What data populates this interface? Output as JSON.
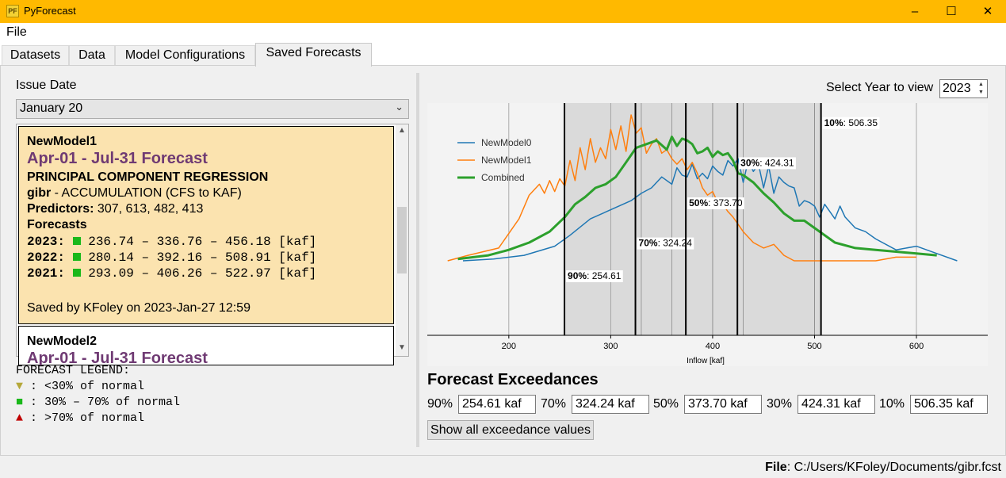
{
  "window": {
    "title": "PyForecast",
    "app_icon_text": "PF",
    "minimize": "–",
    "maximize": "☐",
    "close": "✕"
  },
  "menu": {
    "file": "File"
  },
  "tabs": [
    {
      "label": "Datasets",
      "active": false
    },
    {
      "label": "Data",
      "active": false
    },
    {
      "label": "Model Configurations",
      "active": false
    },
    {
      "label": "Saved Forecasts",
      "active": true
    }
  ],
  "issue_date": {
    "label": "Issue Date",
    "selected": "January 20"
  },
  "saved_forecasts": [
    {
      "model": "NewModel1",
      "period": "Apr-01 - Jul-31 Forecast",
      "method": "PRINCIPAL COMPONENT REGRESSION",
      "target_code": "gibr",
      "target_desc": " - ACCUMULATION (CFS to KAF)",
      "predictors_label": "Predictors:",
      "predictors": " 307, 613, 482, 413",
      "forecasts_label": "Forecasts",
      "forecasts": [
        {
          "year": "2023:",
          "range": " 236.74 – 336.76 – 456.18 [kaf]"
        },
        {
          "year": "2022:",
          "range": " 280.14 – 392.16 – 508.91 [kaf]"
        },
        {
          "year": "2021:",
          "range": " 293.09 – 406.26 – 522.97 [kaf]"
        }
      ],
      "saved_by": "Saved by KFoley on 2023-Jan-27 12:59"
    },
    {
      "model": "NewModel2",
      "period": "Apr-01 - Jul-31 Forecast"
    }
  ],
  "legend": {
    "title": "FORECAST LEGEND:",
    "items": [
      {
        "symbol": "▼",
        "color": "#b5a83a",
        "text": " : <30% of normal"
      },
      {
        "symbol": "■",
        "color": "#1ab81a",
        "text": " : 30% – 70% of normal"
      },
      {
        "symbol": "▲",
        "color": "#c00000",
        "text": " : >70% of normal"
      }
    ]
  },
  "year_select": {
    "label": "Select Year to view",
    "value": "2023"
  },
  "chart_data": {
    "type": "line",
    "xlabel": "Inflow [kaf]",
    "xlim": [
      120,
      670
    ],
    "ylim": [
      0,
      1
    ],
    "xticks": [
      200,
      300,
      400,
      500,
      600
    ],
    "grid": true,
    "legend_position": "top-left",
    "series": [
      {
        "name": "NewModel0",
        "color": "#1f77b4",
        "width": 1.5,
        "x": [
          155,
          185,
          215,
          245,
          260,
          280,
          300,
          320,
          330,
          340,
          350,
          360,
          365,
          370,
          375,
          380,
          385,
          390,
          395,
          400,
          405,
          410,
          415,
          420,
          425,
          430,
          435,
          440,
          445,
          450,
          455,
          460,
          465,
          470,
          475,
          480,
          485,
          490,
          495,
          500,
          505,
          510,
          515,
          520,
          525,
          530,
          540,
          550,
          560,
          580,
          600,
          620,
          640
        ],
        "y": [
          0.2,
          0.21,
          0.23,
          0.28,
          0.34,
          0.43,
          0.48,
          0.53,
          0.57,
          0.6,
          0.66,
          0.62,
          0.71,
          0.67,
          0.66,
          0.73,
          0.65,
          0.68,
          0.65,
          0.72,
          0.69,
          0.67,
          0.75,
          0.72,
          0.76,
          0.63,
          0.75,
          0.69,
          0.73,
          0.6,
          0.72,
          0.57,
          0.66,
          0.63,
          0.61,
          0.6,
          0.5,
          0.53,
          0.52,
          0.5,
          0.44,
          0.51,
          0.47,
          0.43,
          0.5,
          0.44,
          0.38,
          0.36,
          0.32,
          0.26,
          0.28,
          0.24,
          0.2
        ]
      },
      {
        "name": "NewModel1",
        "color": "#ff7f0e",
        "width": 1.5,
        "x": [
          140,
          160,
          190,
          210,
          220,
          230,
          235,
          240,
          245,
          250,
          255,
          260,
          265,
          270,
          275,
          280,
          285,
          290,
          295,
          300,
          305,
          310,
          315,
          320,
          325,
          330,
          335,
          340,
          345,
          350,
          355,
          360,
          365,
          370,
          375,
          380,
          385,
          390,
          395,
          400,
          405,
          410,
          415,
          420,
          425,
          430,
          440,
          450,
          460,
          470,
          480,
          490,
          500,
          520,
          540,
          560,
          580,
          600
        ],
        "y": [
          0.2,
          0.23,
          0.27,
          0.43,
          0.56,
          0.62,
          0.57,
          0.64,
          0.58,
          0.65,
          0.61,
          0.75,
          0.64,
          0.82,
          0.7,
          0.87,
          0.74,
          0.82,
          0.76,
          0.92,
          0.81,
          0.94,
          0.8,
          1.0,
          0.9,
          0.93,
          0.79,
          0.84,
          0.87,
          0.79,
          0.81,
          0.76,
          0.73,
          0.76,
          0.7,
          0.74,
          0.68,
          0.6,
          0.56,
          0.58,
          0.52,
          0.51,
          0.47,
          0.44,
          0.4,
          0.36,
          0.3,
          0.27,
          0.29,
          0.23,
          0.2,
          0.2,
          0.2,
          0.2,
          0.2,
          0.2,
          0.22,
          0.22
        ]
      },
      {
        "name": "Combined",
        "color": "#2ca02c",
        "width": 3,
        "x": [
          150,
          180,
          200,
          220,
          240,
          255,
          265,
          275,
          285,
          295,
          305,
          315,
          325,
          335,
          345,
          355,
          360,
          365,
          370,
          375,
          380,
          385,
          390,
          395,
          400,
          405,
          410,
          415,
          420,
          425,
          430,
          440,
          450,
          460,
          470,
          480,
          490,
          500,
          520,
          540,
          560,
          580,
          600,
          620
        ],
        "y": [
          0.21,
          0.23,
          0.26,
          0.3,
          0.36,
          0.44,
          0.51,
          0.55,
          0.6,
          0.62,
          0.66,
          0.74,
          0.82,
          0.84,
          0.86,
          0.81,
          0.88,
          0.83,
          0.87,
          0.86,
          0.84,
          0.79,
          0.8,
          0.82,
          0.77,
          0.8,
          0.78,
          0.79,
          0.75,
          0.68,
          0.67,
          0.63,
          0.57,
          0.52,
          0.46,
          0.42,
          0.42,
          0.38,
          0.3,
          0.27,
          0.26,
          0.25,
          0.24,
          0.23
        ]
      }
    ],
    "exceedance_lines": [
      {
        "pct": "90%",
        "value": 254.61,
        "label": ": 254.61",
        "label_y": 0.1
      },
      {
        "pct": "70%",
        "value": 324.24,
        "label": ": 324.24",
        "label_y": 0.28
      },
      {
        "pct": "50%",
        "value": 373.7,
        "label": ": 373.70",
        "label_y": 0.5
      },
      {
        "pct": "30%",
        "value": 424.31,
        "label": ": 424.31",
        "label_y": 0.72
      },
      {
        "pct": "10%",
        "value": 506.35,
        "label": ": 506.35",
        "label_y": 0.94
      }
    ],
    "shaded_band": [
      254.61,
      506.35
    ],
    "thin_lines": [
      330,
      360,
      400,
      430,
      500
    ]
  },
  "exceedances": {
    "title": "Forecast Exceedances",
    "items": [
      {
        "label": "90%",
        "value": "254.61 kaf"
      },
      {
        "label": "70%",
        "value": "324.24 kaf"
      },
      {
        "label": "50%",
        "value": "373.70 kaf"
      },
      {
        "label": "30%",
        "value": "424.31 kaf"
      },
      {
        "label": "10%",
        "value": "506.35 kaf"
      }
    ],
    "button": "Show all exceedance values"
  },
  "status": {
    "file_label": "File",
    "file_path": ": C:/Users/KFoley/Documents/gibr.fcst"
  }
}
